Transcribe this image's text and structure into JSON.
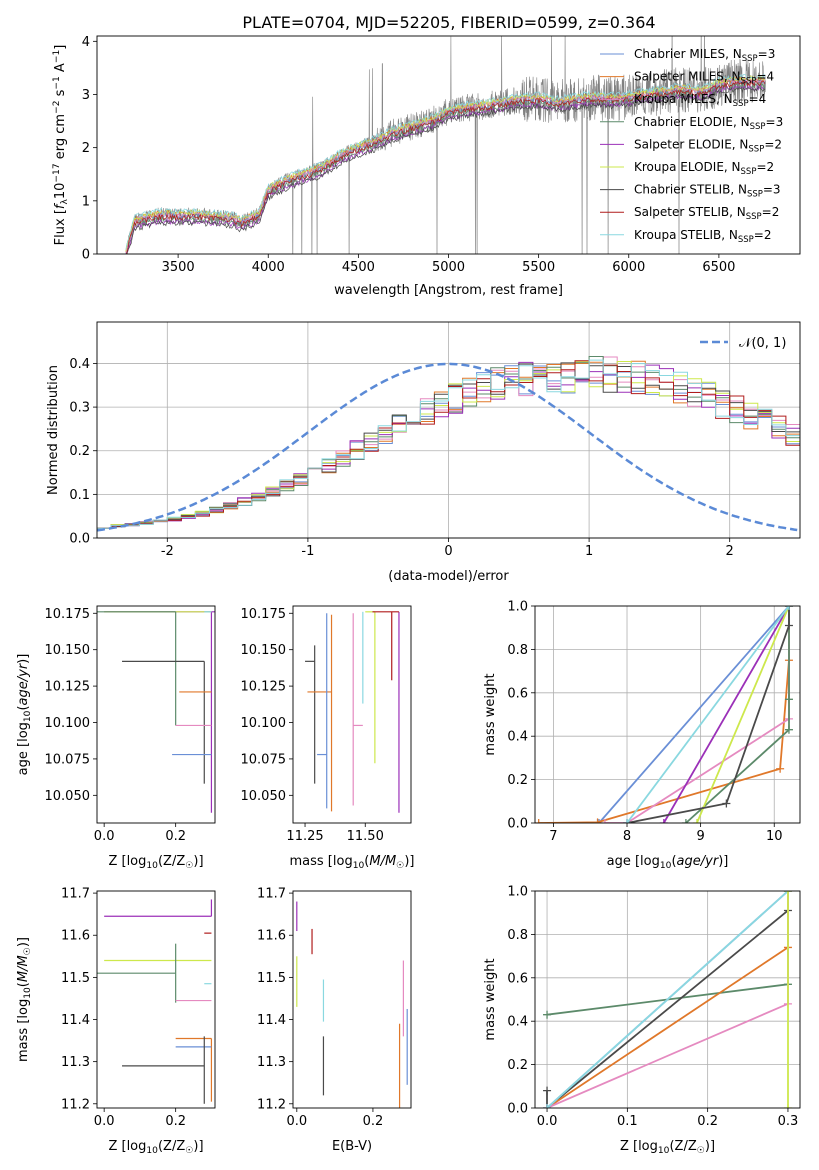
{
  "figure_title": "PLATE=0704, MJD=52205, FIBERID=0599, z=0.364",
  "colors": {
    "chabrier_miles": "#6a8fd6",
    "salpeter_miles": "#e0782a",
    "kroupa_miles": "#e58ac0",
    "chabrier_elodie": "#5c8a6a",
    "salpeter_elodie": "#9b30b8",
    "kroupa_elodie": "#cde84c",
    "chabrier_stelib": "#4a4a4a",
    "salpeter_stelib": "#b01c1c",
    "kroupa_stelib": "#8ad8e0",
    "data": "#808080",
    "normal": "#5b8ad6"
  },
  "chart_data": [
    {
      "id": "spectrum",
      "type": "line",
      "xlabel": "wavelength [Angstrom, rest frame]",
      "ylabel": "Flux [f_λ 10^-17 erg cm^-2 s^-1 A^-1]",
      "xlim": [
        3050,
        6950
      ],
      "ylim": [
        0,
        4.1
      ],
      "xticks": [
        3500,
        4000,
        4500,
        5000,
        5500,
        6000,
        6500
      ],
      "yticks": [
        0,
        1,
        2,
        3,
        4
      ],
      "grid": false,
      "legend": "right",
      "legend_entries": [
        {
          "label": "Chabrier MILES, N",
          "sub": "SSP",
          "tail": "=3",
          "color_key": "chabrier_miles"
        },
        {
          "label": "Salpeter MILES, N",
          "sub": "SSP",
          "tail": "=4",
          "color_key": "salpeter_miles"
        },
        {
          "label": "Kroupa MILES, N",
          "sub": "SSP",
          "tail": "=4",
          "color_key": "kroupa_miles"
        },
        {
          "label": "Chabrier ELODIE, N",
          "sub": "SSP",
          "tail": "=3",
          "color_key": "chabrier_elodie"
        },
        {
          "label": "Salpeter ELODIE, N",
          "sub": "SSP",
          "tail": "=2",
          "color_key": "salpeter_elodie"
        },
        {
          "label": "Kroupa ELODIE, N",
          "sub": "SSP",
          "tail": "=2",
          "color_key": "kroupa_elodie"
        },
        {
          "label": "Chabrier STELIB, N",
          "sub": "SSP",
          "tail": "=3",
          "color_key": "chabrier_stelib"
        },
        {
          "label": "Salpeter STELIB, N",
          "sub": "SSP",
          "tail": "=2",
          "color_key": "salpeter_stelib"
        },
        {
          "label": "Kroupa STELIB, N",
          "sub": "SSP",
          "tail": "=2",
          "color_key": "kroupa_stelib"
        }
      ],
      "model_continuum": {
        "x": [
          3210,
          3260,
          3400,
          3500,
          3600,
          3700,
          3800,
          3850,
          3950,
          4000,
          4100,
          4200,
          4300,
          4400,
          4500,
          4600,
          4700,
          4800,
          4900,
          5000,
          5100,
          5200,
          5300,
          5400,
          5500,
          5600,
          5700,
          5800,
          5900,
          6000,
          6100,
          6200,
          6300,
          6400,
          6500,
          6600,
          6750
        ],
        "y": [
          0.05,
          0.62,
          0.74,
          0.72,
          0.74,
          0.7,
          0.68,
          0.6,
          0.75,
          1.2,
          1.38,
          1.5,
          1.62,
          1.85,
          2.0,
          2.12,
          2.3,
          2.4,
          2.5,
          2.68,
          2.75,
          2.78,
          2.85,
          2.9,
          2.92,
          2.85,
          2.9,
          2.95,
          2.92,
          2.95,
          3.0,
          3.05,
          3.1,
          3.05,
          3.2,
          3.25,
          3.25
        ]
      },
      "model_offsets": [
        0.0,
        0.04,
        0.02,
        -0.08,
        -0.12,
        0.05,
        -0.15,
        -0.04,
        0.08
      ]
    },
    {
      "id": "residuals",
      "type": "bar",
      "xlabel": "(data-model)/error",
      "ylabel": "Normed distribution",
      "xlim": [
        -2.5,
        2.5
      ],
      "ylim": [
        0,
        0.495
      ],
      "xticks": [
        -2,
        -1,
        0,
        1,
        2
      ],
      "yticks": [
        0.0,
        0.1,
        0.2,
        0.3,
        0.4
      ],
      "grid": true,
      "legend": "top-right",
      "legend_label": "𝒩(0, 1)",
      "bin_width": 0.1,
      "bin_start": -2.5,
      "series_base": [
        0.025,
        0.028,
        0.03,
        0.034,
        0.038,
        0.043,
        0.049,
        0.056,
        0.064,
        0.073,
        0.083,
        0.094,
        0.106,
        0.12,
        0.135,
        0.15,
        0.167,
        0.184,
        0.202,
        0.22,
        0.238,
        0.256,
        0.274,
        0.29,
        0.306,
        0.32,
        0.332,
        0.343,
        0.352,
        0.359,
        0.364,
        0.368,
        0.37,
        0.372,
        0.373,
        0.375,
        0.374,
        0.372,
        0.368,
        0.362,
        0.355,
        0.346,
        0.335,
        0.322,
        0.308,
        0.294,
        0.28,
        0.266,
        0.252,
        0.238,
        0.224,
        0.21,
        0.196,
        0.182,
        0.168,
        0.155,
        0.142,
        0.13,
        0.118,
        0.107,
        0.097,
        0.088,
        0.08,
        0.073,
        0.066,
        0.06,
        0.055,
        0.05,
        0.046,
        0.042,
        0.039,
        0.036
      ]
    },
    {
      "id": "age_vs_Z",
      "type": "scatter",
      "xlabel": "Z [log10(Z/Z☉)]",
      "ylabel": "age  [log10(age/yr)]",
      "xlim": [
        -0.02,
        0.31
      ],
      "ylim": [
        10.031,
        10.18
      ],
      "xticks": [
        0.0,
        0.2
      ],
      "yticks": [
        10.05,
        10.075,
        10.1,
        10.125,
        10.15,
        10.175
      ],
      "points": [
        {
          "color_key": "salpeter_elodie",
          "x": 0.3,
          "y": 10.176,
          "xerr": [
            0.3,
            0.3
          ],
          "yerr": [
            0.138,
            0.0
          ]
        },
        {
          "color_key": "kroupa_elodie",
          "x": 0.3,
          "y": 10.176,
          "xerr": [
            0.3,
            0.0
          ],
          "yerr": [
            0.0,
            0.0
          ]
        },
        {
          "color_key": "chabrier_elodie",
          "x": 0.2,
          "y": 10.176,
          "xerr": [
            0.22,
            0.0
          ],
          "yerr": [
            0.078,
            0.0
          ]
        },
        {
          "color_key": "kroupa_stelib",
          "x": 0.3,
          "y": 10.176,
          "xerr": [
            0.02,
            0.0
          ],
          "yerr": [
            0.0,
            0.0
          ]
        },
        {
          "color_key": "chabrier_stelib",
          "x": 0.28,
          "y": 10.142,
          "xerr": [
            0.23,
            0.0
          ],
          "yerr": [
            0.084,
            0.0
          ]
        },
        {
          "color_key": "salpeter_miles",
          "x": 0.3,
          "y": 10.121,
          "xerr": [
            0.09,
            0.0
          ],
          "yerr": [
            0.0,
            0.0
          ]
        },
        {
          "color_key": "kroupa_miles",
          "x": 0.3,
          "y": 10.098,
          "xerr": [
            0.1,
            0.0
          ],
          "yerr": [
            0.0,
            0.0
          ]
        },
        {
          "color_key": "chabrier_miles",
          "x": 0.3,
          "y": 10.078,
          "xerr": [
            0.11,
            0.0
          ],
          "yerr": [
            0.0,
            0.0
          ]
        }
      ]
    },
    {
      "id": "age_vs_mass",
      "type": "scatter",
      "xlabel": "mass [log10(M/M☉)]",
      "ylabel": "",
      "xlim": [
        11.2,
        11.69
      ],
      "ylim": [
        10.031,
        10.18
      ],
      "xticks": [
        11.25,
        11.5
      ],
      "yticks": [
        10.05,
        10.075,
        10.1,
        10.125,
        10.15,
        10.175
      ],
      "points": [
        {
          "color_key": "salpeter_elodie",
          "x": 11.64,
          "y": 10.176,
          "xerr": [
            0.0,
            0.0
          ],
          "yerr": [
            0.138,
            0.0
          ]
        },
        {
          "color_key": "kroupa_elodie",
          "x": 11.54,
          "y": 10.176,
          "xerr": [
            0.04,
            0.0
          ],
          "yerr": [
            0.104,
            0.0
          ]
        },
        {
          "color_key": "salpeter_stelib",
          "x": 11.61,
          "y": 10.176,
          "xerr": [
            0.08,
            0.03
          ],
          "yerr": [
            0.047,
            0.0
          ]
        },
        {
          "color_key": "kroupa_stelib",
          "x": 11.49,
          "y": 10.176,
          "xerr": [
            0.0,
            0.0
          ],
          "yerr": [
            0.063,
            0.0
          ]
        },
        {
          "color_key": "chabrier_elodie",
          "x": 11.51,
          "y": 10.176,
          "xerr": [
            0.0,
            0.0
          ],
          "yerr": [
            0.0,
            0.0
          ]
        },
        {
          "color_key": "chabrier_stelib",
          "x": 11.29,
          "y": 10.142,
          "xerr": [
            0.04,
            0.0
          ],
          "yerr": [
            0.084,
            0.011
          ]
        },
        {
          "color_key": "salpeter_miles",
          "x": 11.36,
          "y": 10.121,
          "xerr": [
            0.1,
            0.0
          ],
          "yerr": [
            0.082,
            0.053
          ]
        },
        {
          "color_key": "kroupa_miles",
          "x": 11.45,
          "y": 10.098,
          "xerr": [
            0.0,
            0.04
          ],
          "yerr": [
            0.055,
            0.077
          ]
        },
        {
          "color_key": "chabrier_miles",
          "x": 11.34,
          "y": 10.078,
          "xerr": [
            0.04,
            0.0
          ],
          "yerr": [
            0.037,
            0.097
          ]
        }
      ]
    },
    {
      "id": "massweight_vs_age",
      "type": "line",
      "xlabel": "age  [log10(age/yr)]",
      "ylabel": "mass weight",
      "xlim": [
        6.75,
        10.35
      ],
      "ylim": [
        0,
        1
      ],
      "xticks": [
        7,
        8,
        9,
        10
      ],
      "yticks": [
        0.0,
        0.2,
        0.4,
        0.6,
        0.8,
        1.0
      ],
      "grid": true,
      "series": [
        {
          "color_key": "chabrier_miles",
          "x": [
            7.6,
            7.62,
            10.2,
            10.2
          ],
          "y": [
            0,
            0.0,
            1.0,
            1.0
          ]
        },
        {
          "color_key": "salpeter_miles",
          "x": [
            6.8,
            7.6,
            10.08,
            10.2,
            10.2
          ],
          "y": [
            0,
            0.003,
            0.25,
            0.75,
            1.0
          ]
        },
        {
          "color_key": "kroupa_miles",
          "x": [
            7.7,
            8.0,
            10.2,
            10.2
          ],
          "y": [
            0,
            0.0,
            0.48,
            1.0
          ]
        },
        {
          "color_key": "chabrier_elodie",
          "x": [
            8.8,
            10.2,
            10.2,
            10.2
          ],
          "y": [
            0,
            0.43,
            0.57,
            1.0
          ]
        },
        {
          "color_key": "salpeter_elodie",
          "x": [
            8.5,
            10.2
          ],
          "y": [
            0,
            1.0
          ]
        },
        {
          "color_key": "kroupa_elodie",
          "x": [
            8.95,
            10.2
          ],
          "y": [
            0,
            1.0
          ]
        },
        {
          "color_key": "chabrier_stelib",
          "x": [
            8.0,
            9.35,
            10.2,
            10.2
          ],
          "y": [
            0,
            0.09,
            0.91,
            1.0
          ]
        },
        {
          "color_key": "kroupa_stelib",
          "x": [
            8.0,
            10.2
          ],
          "y": [
            0,
            1.0
          ]
        }
      ]
    },
    {
      "id": "mass_vs_Z",
      "type": "scatter",
      "xlabel": "Z [log10(Z/Z☉)]",
      "ylabel": "mass [log10(M/M☉)]",
      "xlim": [
        -0.02,
        0.31
      ],
      "ylim": [
        11.19,
        11.705
      ],
      "xticks": [
        0.0,
        0.2
      ],
      "yticks": [
        11.2,
        11.3,
        11.4,
        11.5,
        11.6,
        11.7
      ],
      "points": [
        {
          "color_key": "salpeter_elodie",
          "x": 0.3,
          "y": 11.645,
          "xerr": [
            0.3,
            0.0
          ],
          "yerr": [
            0.0,
            0.04
          ]
        },
        {
          "color_key": "salpeter_stelib",
          "x": 0.3,
          "y": 11.605,
          "xerr": [
            0.02,
            0.0
          ],
          "yerr": [
            0.0,
            0.0
          ]
        },
        {
          "color_key": "kroupa_elodie",
          "x": 0.3,
          "y": 11.54,
          "xerr": [
            0.3,
            0.0
          ],
          "yerr": [
            0.0,
            0.0
          ]
        },
        {
          "color_key": "chabrier_elodie",
          "x": 0.2,
          "y": 11.51,
          "xerr": [
            0.22,
            0.0
          ],
          "yerr": [
            0.07,
            0.07
          ]
        },
        {
          "color_key": "kroupa_stelib",
          "x": 0.3,
          "y": 11.485,
          "xerr": [
            0.02,
            0.0
          ],
          "yerr": [
            0.0,
            0.0
          ]
        },
        {
          "color_key": "kroupa_miles",
          "x": 0.3,
          "y": 11.445,
          "xerr": [
            0.1,
            0.0
          ],
          "yerr": [
            0.0,
            0.0
          ]
        },
        {
          "color_key": "salpeter_miles",
          "x": 0.3,
          "y": 11.355,
          "xerr": [
            0.1,
            0.0
          ],
          "yerr": [
            0.15,
            0.0
          ]
        },
        {
          "color_key": "chabrier_miles",
          "x": 0.3,
          "y": 11.335,
          "xerr": [
            0.1,
            0.0
          ],
          "yerr": [
            0.0,
            0.0
          ]
        },
        {
          "color_key": "chabrier_stelib",
          "x": 0.28,
          "y": 11.29,
          "xerr": [
            0.23,
            0.0
          ],
          "yerr": [
            0.09,
            0.07
          ]
        }
      ]
    },
    {
      "id": "mass_vs_ebv",
      "type": "scatter",
      "xlabel": "E(B-V)",
      "ylabel": "",
      "xlim": [
        -0.01,
        0.3
      ],
      "ylim": [
        11.19,
        11.705
      ],
      "xticks": [
        0.0,
        0.2
      ],
      "yticks": [
        11.2,
        11.3,
        11.4,
        11.5,
        11.6,
        11.7
      ],
      "points": [
        {
          "color_key": "salpeter_elodie",
          "x": 0.0,
          "y": 11.645,
          "xerr": [
            0.0,
            0.0
          ],
          "yerr": [
            0.035,
            0.035
          ]
        },
        {
          "color_key": "salpeter_stelib",
          "x": 0.04,
          "y": 11.585,
          "xerr": [
            0.0,
            0.0
          ],
          "yerr": [
            0.03,
            0.03
          ]
        },
        {
          "color_key": "kroupa_elodie",
          "x": 0.0,
          "y": 11.49,
          "xerr": [
            0.0,
            0.0
          ],
          "yerr": [
            0.06,
            0.06
          ]
        },
        {
          "color_key": "kroupa_stelib",
          "x": 0.07,
          "y": 11.445,
          "xerr": [
            0.0,
            0.0
          ],
          "yerr": [
            0.05,
            0.05
          ]
        },
        {
          "color_key": "chabrier_stelib",
          "x": 0.07,
          "y": 11.29,
          "xerr": [
            0.0,
            0.0
          ],
          "yerr": [
            0.07,
            0.07
          ]
        },
        {
          "color_key": "kroupa_miles",
          "x": 0.28,
          "y": 11.45,
          "xerr": [
            0.0,
            0.0
          ],
          "yerr": [
            0.09,
            0.09
          ]
        },
        {
          "color_key": "salpeter_miles",
          "x": 0.27,
          "y": 11.29,
          "xerr": [
            0.0,
            0.0
          ],
          "yerr": [
            0.1,
            0.1
          ]
        },
        {
          "color_key": "chabrier_miles",
          "x": 0.29,
          "y": 11.335,
          "xerr": [
            0.0,
            0.0
          ],
          "yerr": [
            0.09,
            0.09
          ]
        }
      ]
    },
    {
      "id": "massweight_vs_Z",
      "type": "line",
      "xlabel": "Z [log10(Z/Z☉)]",
      "ylabel": "mass weight",
      "xlim": [
        -0.015,
        0.315
      ],
      "ylim": [
        0,
        1
      ],
      "xticks": [
        0.0,
        0.1,
        0.2,
        0.3
      ],
      "yticks": [
        0.0,
        0.2,
        0.4,
        0.6,
        0.8,
        1.0
      ],
      "grid": true,
      "series": [
        {
          "color_key": "chabrier_elodie",
          "x": [
            0.0,
            0.3,
            0.3
          ],
          "y": [
            0.43,
            0.57,
            1.0
          ]
        },
        {
          "color_key": "chabrier_stelib",
          "x": [
            0.0,
            0.0,
            0.3,
            0.3
          ],
          "y": [
            0.08,
            0.0,
            0.91,
            1.0
          ]
        },
        {
          "color_key": "salpeter_miles",
          "x": [
            0.0,
            0.3,
            0.3
          ],
          "y": [
            0.0,
            0.74,
            1.0
          ]
        },
        {
          "color_key": "kroupa_miles",
          "x": [
            0.0,
            0.3,
            0.3
          ],
          "y": [
            0.0,
            0.48,
            1.0
          ]
        },
        {
          "color_key": "chabrier_miles",
          "x": [
            0.0,
            0.3
          ],
          "y": [
            0.0,
            1.0
          ]
        },
        {
          "color_key": "kroupa_stelib",
          "x": [
            0.0,
            0.3
          ],
          "y": [
            0.0,
            1.0
          ]
        },
        {
          "color_key": "kroupa_elodie",
          "x": [
            0.3,
            0.3
          ],
          "y": [
            0.0,
            1.0
          ]
        }
      ]
    }
  ]
}
